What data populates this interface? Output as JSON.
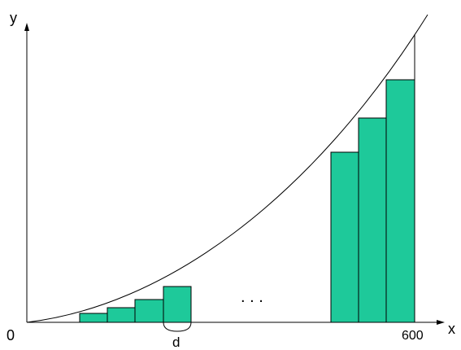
{
  "labels": {
    "y_axis": "y",
    "x_axis": "x",
    "origin": "0",
    "x_end": "600",
    "width_symbol": "d",
    "ellipsis": ". . ."
  },
  "colors": {
    "bar_fill": "#1ec99a",
    "stroke": "#000000",
    "background": "#ffffff"
  },
  "figure": {
    "curve": "increasing convex curve",
    "left_bars_count": 4,
    "right_bars_count": 3
  }
}
